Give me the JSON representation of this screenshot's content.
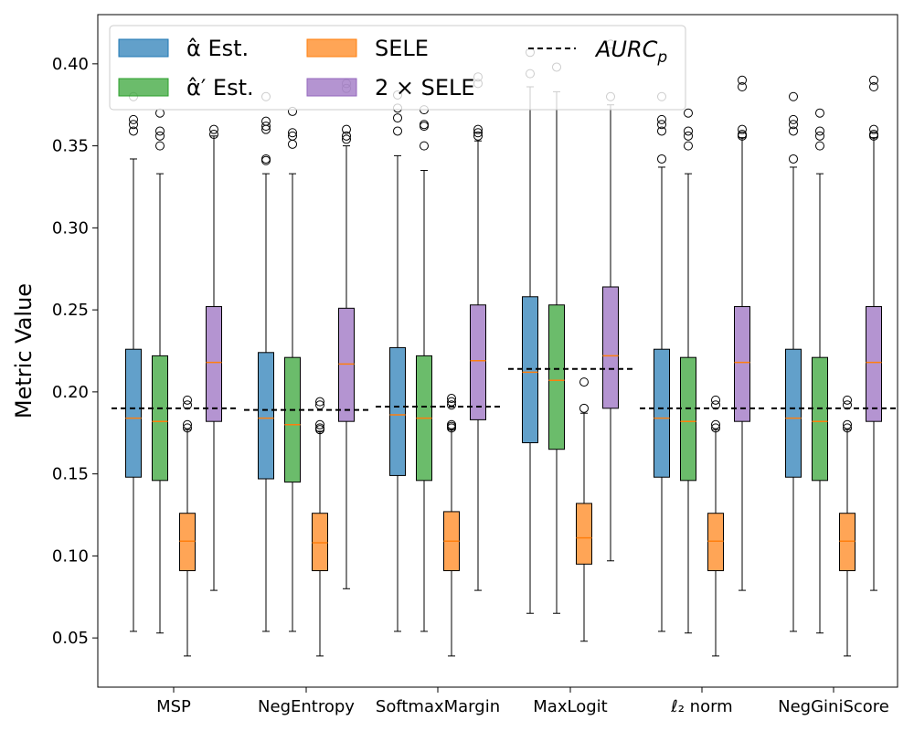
{
  "chart_data": {
    "type": "boxplot",
    "ylabel": "Metric Value",
    "xlabel": "",
    "ylim": [
      0.02,
      0.43
    ],
    "yticks": [
      0.05,
      0.1,
      0.15,
      0.2,
      0.25,
      0.3,
      0.35,
      0.4
    ],
    "ytick_labels": [
      "0.05",
      "0.10",
      "0.15",
      "0.20",
      "0.25",
      "0.30",
      "0.35",
      "0.40"
    ],
    "categories": [
      "MSP",
      "NegEntropy",
      "SoftmaxMargin",
      "MaxLogit",
      "ℓ₂ norm",
      "NegGiniScore"
    ],
    "legend": {
      "placement": "top-left",
      "entries": [
        {
          "label": "α̂ Est.",
          "color": "#1f77b4"
        },
        {
          "label": "α̂′ Est.",
          "color": "#2ca02c"
        },
        {
          "label": "SELE",
          "color": "#ff7f0e"
        },
        {
          "label": "2 × SELE",
          "color": "#9467bd"
        },
        {
          "label": "AURC",
          "sub": "p",
          "style": "dashed",
          "color": "#000000"
        }
      ]
    },
    "colors": {
      "alpha": "#1f77b4",
      "alpha_prime": "#2ca02c",
      "sele": "#ff7f0e",
      "two_sele": "#9467bd",
      "median": "#ff7f0e",
      "whisker": "#000000",
      "outlier": "#000000"
    },
    "aurc_p": [
      0.19,
      0.189,
      0.191,
      0.214,
      0.19,
      0.19
    ],
    "series": [
      {
        "name": "α̂ Est.",
        "key": "alpha",
        "boxes": [
          {
            "wlo": 0.054,
            "q1": 0.148,
            "med": 0.184,
            "q3": 0.226,
            "whi": 0.342,
            "outliers": [
              0.359,
              0.363,
              0.366,
              0.38
            ]
          },
          {
            "wlo": 0.054,
            "q1": 0.147,
            "med": 0.184,
            "q3": 0.224,
            "whi": 0.333,
            "outliers": [
              0.341,
              0.342,
              0.36,
              0.362,
              0.365,
              0.38
            ]
          },
          {
            "wlo": 0.054,
            "q1": 0.149,
            "med": 0.186,
            "q3": 0.227,
            "whi": 0.344,
            "outliers": [
              0.359,
              0.367,
              0.373,
              0.381
            ]
          },
          {
            "wlo": 0.065,
            "q1": 0.169,
            "med": 0.212,
            "q3": 0.258,
            "whi": 0.386,
            "outliers": [
              0.394,
              0.407
            ]
          },
          {
            "wlo": 0.054,
            "q1": 0.148,
            "med": 0.184,
            "q3": 0.226,
            "whi": 0.337,
            "outliers": [
              0.342,
              0.359,
              0.363,
              0.366,
              0.38
            ]
          },
          {
            "wlo": 0.054,
            "q1": 0.148,
            "med": 0.184,
            "q3": 0.226,
            "whi": 0.337,
            "outliers": [
              0.342,
              0.359,
              0.363,
              0.366,
              0.38
            ]
          }
        ]
      },
      {
        "name": "α̂′ Est.",
        "key": "alpha_prime",
        "boxes": [
          {
            "wlo": 0.053,
            "q1": 0.146,
            "med": 0.182,
            "q3": 0.222,
            "whi": 0.333,
            "outliers": [
              0.35,
              0.356,
              0.359,
              0.37
            ]
          },
          {
            "wlo": 0.054,
            "q1": 0.145,
            "med": 0.18,
            "q3": 0.221,
            "whi": 0.333,
            "outliers": [
              0.351,
              0.356,
              0.358,
              0.371
            ]
          },
          {
            "wlo": 0.054,
            "q1": 0.146,
            "med": 0.184,
            "q3": 0.222,
            "whi": 0.335,
            "outliers": [
              0.35,
              0.362,
              0.363,
              0.372
            ]
          },
          {
            "wlo": 0.065,
            "q1": 0.165,
            "med": 0.207,
            "q3": 0.253,
            "whi": 0.383,
            "outliers": [
              0.398
            ]
          },
          {
            "wlo": 0.053,
            "q1": 0.146,
            "med": 0.182,
            "q3": 0.221,
            "whi": 0.333,
            "outliers": [
              0.35,
              0.356,
              0.359,
              0.37
            ]
          },
          {
            "wlo": 0.053,
            "q1": 0.146,
            "med": 0.182,
            "q3": 0.221,
            "whi": 0.333,
            "outliers": [
              0.35,
              0.356,
              0.359,
              0.37
            ]
          }
        ]
      },
      {
        "name": "SELE",
        "key": "sele",
        "boxes": [
          {
            "wlo": 0.039,
            "q1": 0.091,
            "med": 0.109,
            "q3": 0.126,
            "whi": 0.177,
            "outliers": [
              0.178,
              0.18,
              0.192,
              0.195
            ]
          },
          {
            "wlo": 0.039,
            "q1": 0.091,
            "med": 0.108,
            "q3": 0.126,
            "whi": 0.176,
            "outliers": [
              0.177,
              0.178,
              0.18,
              0.192,
              0.194
            ]
          },
          {
            "wlo": 0.039,
            "q1": 0.091,
            "med": 0.109,
            "q3": 0.127,
            "whi": 0.177,
            "outliers": [
              0.178,
              0.179,
              0.18,
              0.192,
              0.194,
              0.196
            ]
          },
          {
            "wlo": 0.048,
            "q1": 0.095,
            "med": 0.111,
            "q3": 0.132,
            "whi": 0.187,
            "outliers": [
              0.19,
              0.206
            ]
          },
          {
            "wlo": 0.039,
            "q1": 0.091,
            "med": 0.109,
            "q3": 0.126,
            "whi": 0.177,
            "outliers": [
              0.178,
              0.18,
              0.192,
              0.195
            ]
          },
          {
            "wlo": 0.039,
            "q1": 0.091,
            "med": 0.109,
            "q3": 0.126,
            "whi": 0.177,
            "outliers": [
              0.178,
              0.18,
              0.192,
              0.195
            ]
          }
        ]
      },
      {
        "name": "2 × SELE",
        "key": "two_sele",
        "boxes": [
          {
            "wlo": 0.079,
            "q1": 0.182,
            "med": 0.218,
            "q3": 0.252,
            "whi": 0.356,
            "outliers": [
              0.357,
              0.36
            ]
          },
          {
            "wlo": 0.08,
            "q1": 0.182,
            "med": 0.217,
            "q3": 0.251,
            "whi": 0.35,
            "outliers": [
              0.354,
              0.356,
              0.36,
              0.385,
              0.388
            ]
          },
          {
            "wlo": 0.079,
            "q1": 0.183,
            "med": 0.219,
            "q3": 0.253,
            "whi": 0.353,
            "outliers": [
              0.356,
              0.358,
              0.36,
              0.388,
              0.392
            ]
          },
          {
            "wlo": 0.097,
            "q1": 0.19,
            "med": 0.222,
            "q3": 0.264,
            "whi": 0.375,
            "outliers": [
              0.38,
              0.412
            ]
          },
          {
            "wlo": 0.079,
            "q1": 0.182,
            "med": 0.218,
            "q3": 0.252,
            "whi": 0.355,
            "outliers": [
              0.356,
              0.357,
              0.36,
              0.386,
              0.39
            ]
          },
          {
            "wlo": 0.079,
            "q1": 0.182,
            "med": 0.218,
            "q3": 0.252,
            "whi": 0.355,
            "outliers": [
              0.356,
              0.357,
              0.36,
              0.386,
              0.39
            ]
          }
        ]
      }
    ]
  }
}
